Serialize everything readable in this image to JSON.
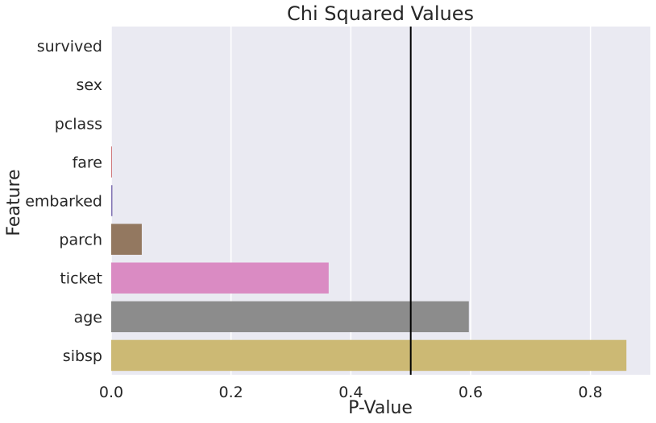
{
  "chart_data": {
    "type": "bar",
    "orientation": "horizontal",
    "title": "Chi Squared Values",
    "xlabel": "P-Value",
    "ylabel": "Feature",
    "categories": [
      "survived",
      "sex",
      "pclass",
      "fare",
      "embarked",
      "parch",
      "ticket",
      "age",
      "sibsp"
    ],
    "values": [
      0.0,
      0.0,
      0.0,
      0.001,
      0.002,
      0.051,
      0.363,
      0.597,
      0.86
    ],
    "colors": [
      "#4c72b0",
      "#dd8452",
      "#55a868",
      "#c44e52",
      "#8172b3",
      "#937860",
      "#da8bc3",
      "#8c8c8c",
      "#ccb974"
    ],
    "xlim": [
      0,
      0.9
    ],
    "xticks": [
      "0.0",
      "0.2",
      "0.4",
      "0.6",
      "0.8"
    ],
    "reference_line": 0.5,
    "grid": true,
    "background": "#eaeaf2"
  }
}
